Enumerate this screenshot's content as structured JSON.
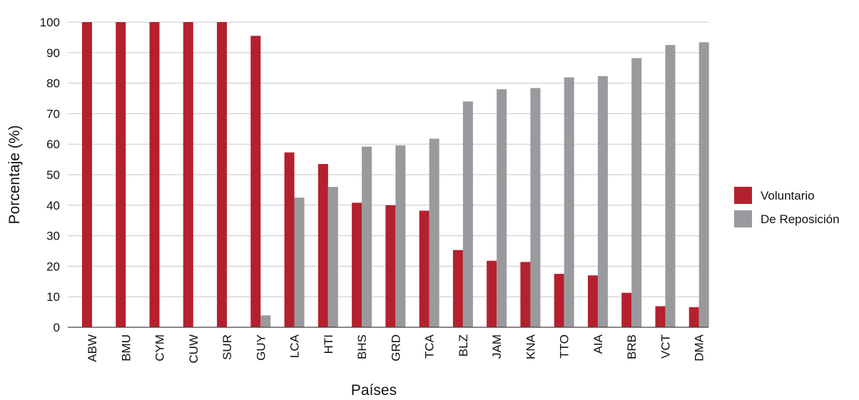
{
  "chart_data": {
    "type": "bar",
    "title": "",
    "xlabel": "Países",
    "ylabel": "Porcentaje (%)",
    "ylim": [
      0,
      100
    ],
    "yticks": [
      0,
      10,
      20,
      30,
      40,
      50,
      60,
      70,
      80,
      90,
      100
    ],
    "grid": true,
    "legend_position": "right",
    "categories": [
      "ABW",
      "BMU",
      "CYM",
      "CUW",
      "SUR",
      "GUY",
      "LCA",
      "HTI",
      "BHS",
      "GRD",
      "TCA",
      "BLZ",
      "JAM",
      "KNA",
      "TTO",
      "AIA",
      "BRB",
      "VCT",
      "DMA"
    ],
    "series": [
      {
        "name": "Voluntario",
        "color": "#b5202e",
        "values": [
          100,
          100,
          100,
          100,
          100,
          95.5,
          57.3,
          53.5,
          40.8,
          40,
          38.2,
          25.3,
          21.8,
          21.4,
          17.5,
          17,
          11.3,
          6.9,
          6.6
        ]
      },
      {
        "name": "De Reposición",
        "color": "#999a9e",
        "values": [
          0,
          0,
          0,
          0,
          0,
          3.9,
          42.5,
          46,
          59.2,
          59.6,
          61.8,
          74,
          78,
          78.4,
          81.9,
          82.3,
          88.2,
          92.5,
          93.4
        ]
      }
    ]
  }
}
